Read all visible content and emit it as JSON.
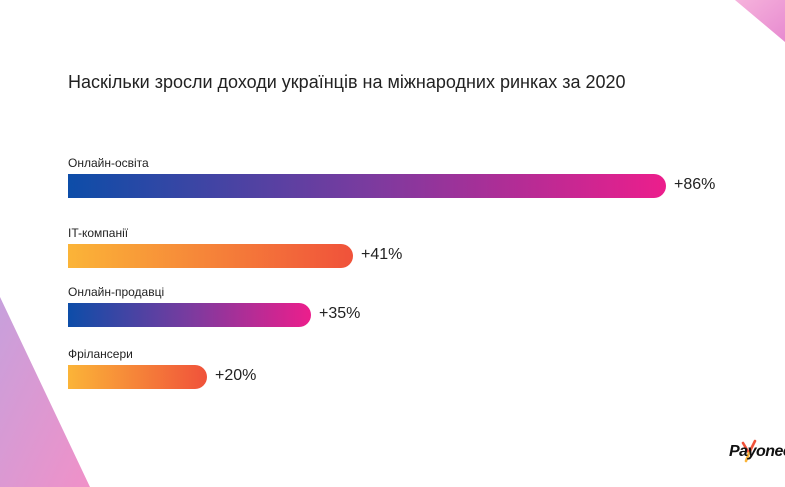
{
  "brand": {
    "logo_text": "Payoneer",
    "colors": {
      "blue": "#0d4da8",
      "purple": "#7a3b9f",
      "pink": "#ec1e8c",
      "orange_light": "#fbb438",
      "orange_dark": "#f0523a",
      "deco_pink": "#f39cd0",
      "deco_violet": "#c99bd6"
    }
  },
  "chart_data": {
    "type": "bar",
    "orientation": "horizontal",
    "title": "Наскільки зросли доходи українців на міжнародних ринках за 2020",
    "categories": [
      "Онлайн-освіта",
      "IT-компанії",
      "Онлайн-продавці",
      "Фрілансери"
    ],
    "values": [
      86,
      41,
      35,
      20
    ],
    "value_labels": [
      "+86%",
      "+41%",
      "+35%",
      "+20%"
    ],
    "unit": "%",
    "xlim": [
      0,
      86
    ],
    "grid": false,
    "legend": "none",
    "bar_gradients": [
      "blue-pink",
      "orange",
      "blue-pink",
      "orange"
    ]
  }
}
